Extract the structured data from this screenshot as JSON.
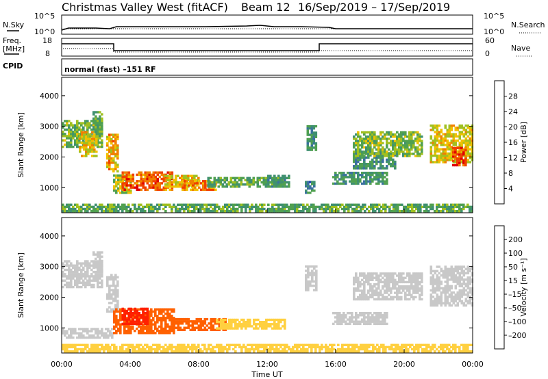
{
  "header": {
    "station": "Christmas Valley West (fitACF)",
    "beam": "Beam 12",
    "date_range": "16/Sep/2019 – 17/Sep/2019",
    "mode": "normal (fast) –151 RF"
  },
  "strip_labels": {
    "nsky": "N.Sky",
    "nsky_top": "10^5",
    "nsky_bottom": "10^0",
    "nsearch": "N.Search",
    "nsearch_top": "10^5",
    "nsearch_bottom": "10^0",
    "freq": "Freq.",
    "freq_unit": "[MHz]",
    "freq_top": "18",
    "freq_bottom": "8",
    "nave": "Nave",
    "nave_top": "60",
    "nave_bottom": "0",
    "cpid": "CPID"
  },
  "colors": {
    "power_scale": [
      "#0000ff",
      "#2040b0",
      "#3a70a0",
      "#3f9070",
      "#50a050",
      "#a0c020",
      "#f0c000",
      "#f08000",
      "#f04000",
      "#e00000"
    ],
    "velocity_scale": [
      "#2020a0",
      "#3050d0",
      "#30a030",
      "#80d040",
      "#c8c8c8",
      "#ffd040",
      "#ffa000",
      "#ff6000",
      "#ff2000",
      "#e00000"
    ]
  },
  "chart_data": [
    {
      "type": "heatmap",
      "quantity": "power",
      "ylabel": "Slant Range [km]",
      "yticks": [
        1000,
        2000,
        3000,
        4000
      ],
      "ylim": [
        180,
        4600
      ],
      "x": [
        "00:00",
        "04:00",
        "08:00",
        "12:00",
        "16:00",
        "20:00",
        "00:00"
      ],
      "xlim_hours": [
        0,
        24
      ],
      "colorbar": {
        "label": "Power [dB]",
        "ticks": [
          "4",
          "8",
          "12",
          "16",
          "20",
          "24",
          "28"
        ],
        "range": [
          0,
          32
        ]
      },
      "regions": [
        {
          "t0": 0.0,
          "t1": 2.4,
          "r0": 2300,
          "r1": 3200,
          "v": 16
        },
        {
          "t0": 1.0,
          "t1": 2.0,
          "r0": 2000,
          "r1": 2800,
          "v": 20
        },
        {
          "t0": 1.8,
          "t1": 2.3,
          "r0": 2800,
          "r1": 3500,
          "v": 14
        },
        {
          "t0": 2.6,
          "t1": 3.3,
          "r0": 1500,
          "r1": 2700,
          "v": 22
        },
        {
          "t0": 3.0,
          "t1": 4.0,
          "r0": 800,
          "r1": 1400,
          "v": 18
        },
        {
          "t0": 3.5,
          "t1": 6.5,
          "r0": 900,
          "r1": 1500,
          "v": 26
        },
        {
          "t0": 6.0,
          "t1": 8.0,
          "r0": 1000,
          "r1": 1400,
          "v": 20
        },
        {
          "t0": 7.0,
          "t1": 9.0,
          "r0": 900,
          "r1": 1200,
          "v": 24
        },
        {
          "t0": 8.5,
          "t1": 13.0,
          "r0": 1000,
          "r1": 1300,
          "v": 14
        },
        {
          "t0": 12.0,
          "t1": 13.3,
          "r0": 1000,
          "r1": 1400,
          "v": 12
        },
        {
          "t0": 14.2,
          "t1": 14.7,
          "r0": 800,
          "r1": 1200,
          "v": 10
        },
        {
          "t0": 14.3,
          "t1": 14.8,
          "r0": 2200,
          "r1": 3000,
          "v": 12
        },
        {
          "t0": 15.8,
          "t1": 19.0,
          "r0": 1100,
          "r1": 1500,
          "v": 12
        },
        {
          "t0": 17.0,
          "t1": 19.5,
          "r0": 1600,
          "r1": 2100,
          "v": 12
        },
        {
          "t0": 17.0,
          "t1": 21.0,
          "r0": 2000,
          "r1": 2800,
          "v": 16
        },
        {
          "t0": 21.5,
          "t1": 24.0,
          "r0": 1800,
          "r1": 3000,
          "v": 20
        },
        {
          "t0": 22.8,
          "t1": 23.6,
          "r0": 1700,
          "r1": 2300,
          "v": 28
        },
        {
          "t0": 0.0,
          "t1": 24.0,
          "r0": 200,
          "r1": 450,
          "v": 14
        }
      ]
    },
    {
      "type": "heatmap",
      "quantity": "velocity",
      "ylabel": "Slant Range [km]",
      "yticks": [
        1000,
        2000,
        3000,
        4000
      ],
      "ylim": [
        180,
        4600
      ],
      "x": [
        "00:00",
        "04:00",
        "08:00",
        "12:00",
        "16:00",
        "20:00",
        "00:00"
      ],
      "xlabel": "Time UT",
      "xlim_hours": [
        0,
        24
      ],
      "colorbar": {
        "label": "Velocity [m s⁻¹]",
        "ticks": [
          "200",
          "100",
          "50",
          "15",
          "–15",
          "–50",
          "–100",
          "–200"
        ]
      },
      "regions": [
        {
          "t0": 0.0,
          "t1": 2.4,
          "r0": 2300,
          "r1": 3200,
          "v": 0
        },
        {
          "t0": 1.8,
          "t1": 2.3,
          "r0": 2800,
          "r1": 3500,
          "v": 0
        },
        {
          "t0": 2.6,
          "t1": 3.3,
          "r0": 1500,
          "r1": 2700,
          "v": 0
        },
        {
          "t0": 0.0,
          "t1": 3.0,
          "r0": 650,
          "r1": 1000,
          "v": 0
        },
        {
          "t0": 3.0,
          "t1": 6.5,
          "r0": 800,
          "r1": 1600,
          "v": -80
        },
        {
          "t0": 3.5,
          "t1": 5.0,
          "r0": 1100,
          "r1": 1600,
          "v": -120
        },
        {
          "t0": 6.5,
          "t1": 9.5,
          "r0": 900,
          "r1": 1300,
          "v": -60
        },
        {
          "t0": 9.0,
          "t1": 13.0,
          "r0": 950,
          "r1": 1300,
          "v": -30
        },
        {
          "t0": 14.2,
          "t1": 14.8,
          "r0": 2200,
          "r1": 3000,
          "v": 0
        },
        {
          "t0": 15.8,
          "t1": 19.0,
          "r0": 1100,
          "r1": 1500,
          "v": 0
        },
        {
          "t0": 17.0,
          "t1": 21.0,
          "r0": 1900,
          "r1": 2800,
          "v": 0
        },
        {
          "t0": 21.5,
          "t1": 24.0,
          "r0": 1700,
          "r1": 3000,
          "v": 0
        },
        {
          "t0": 0.0,
          "t1": 24.0,
          "r0": 200,
          "r1": 450,
          "v": -20
        }
      ]
    }
  ]
}
